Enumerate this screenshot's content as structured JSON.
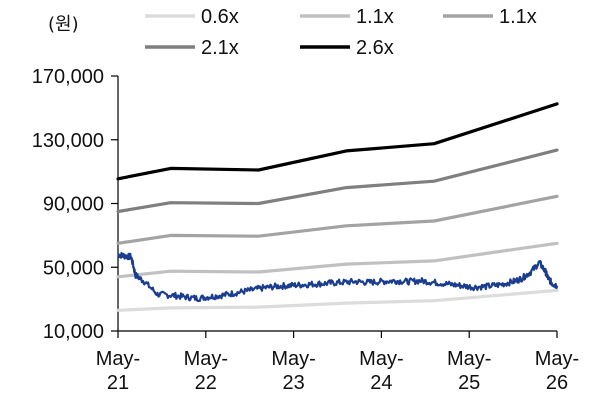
{
  "chart_data": {
    "type": "line",
    "unit_label": "(원)",
    "x_tick_labels": [
      {
        "line1": "May-",
        "line2": "21"
      },
      {
        "line1": "May-",
        "line2": "22"
      },
      {
        "line1": "May-",
        "line2": "23"
      },
      {
        "line1": "May-",
        "line2": "24"
      },
      {
        "line1": "May-",
        "line2": "25"
      },
      {
        "line1": "May-",
        "line2": "26"
      }
    ],
    "x": [
      2021.0,
      2021.6,
      2022.6,
      2023.6,
      2024.6,
      2026.0
    ],
    "xlim": [
      2021.0,
      2026.0
    ],
    "y_ticks": [
      "10,000",
      "50,000",
      "90,000",
      "130,000",
      "170,000"
    ],
    "y_tick_values": [
      10000,
      50000,
      90000,
      130000,
      170000
    ],
    "ylim": [
      10000,
      180000
    ],
    "series": [
      {
        "name": "0.6x",
        "color": "#dcdcdc",
        "values": [
          23000,
          24500,
          25000,
          27500,
          29000,
          35500
        ]
      },
      {
        "name": "1.1x",
        "color": "#c0c0c0",
        "values": [
          44000,
          47500,
          47000,
          52000,
          54000,
          65000
        ]
      },
      {
        "name": "1.1x",
        "color": "#a3a3a3",
        "values": [
          65000,
          70000,
          69500,
          76000,
          79000,
          94500
        ]
      },
      {
        "name": "2.1x",
        "color": "#7f7f7f",
        "values": [
          85000,
          90500,
          90000,
          100000,
          104000,
          123500
        ]
      },
      {
        "name": "2.6x",
        "color": "#000000",
        "values": [
          105500,
          112000,
          111000,
          123000,
          127500,
          152500
        ]
      }
    ],
    "price_series": {
      "color": "#1a3d8f",
      "x": [
        2021.0,
        2021.08,
        2021.15,
        2021.2,
        2021.3,
        2021.45,
        2021.6,
        2021.75,
        2021.9,
        2022.05,
        2022.2,
        2022.35,
        2022.5,
        2022.65,
        2022.8,
        2022.95,
        2023.1,
        2023.25,
        2023.4,
        2023.55,
        2023.7,
        2023.85,
        2024.0,
        2024.15,
        2024.3,
        2024.45,
        2024.6,
        2024.75,
        2024.9,
        2025.05,
        2025.2,
        2025.35,
        2025.5,
        2025.6,
        2025.7,
        2025.8,
        2025.87,
        2025.9,
        2025.95,
        2026.0
      ],
      "values": [
        58000,
        57000,
        56500,
        45000,
        41000,
        33000,
        32500,
        31500,
        30500,
        31500,
        32500,
        34000,
        35500,
        37000,
        38000,
        38500,
        39000,
        39500,
        40000,
        40500,
        41000,
        40500,
        41000,
        41500,
        41000,
        41500,
        40500,
        39500,
        38500,
        37500,
        38000,
        39000,
        41000,
        43000,
        47000,
        53000,
        47000,
        43000,
        39500,
        38500
      ]
    }
  }
}
